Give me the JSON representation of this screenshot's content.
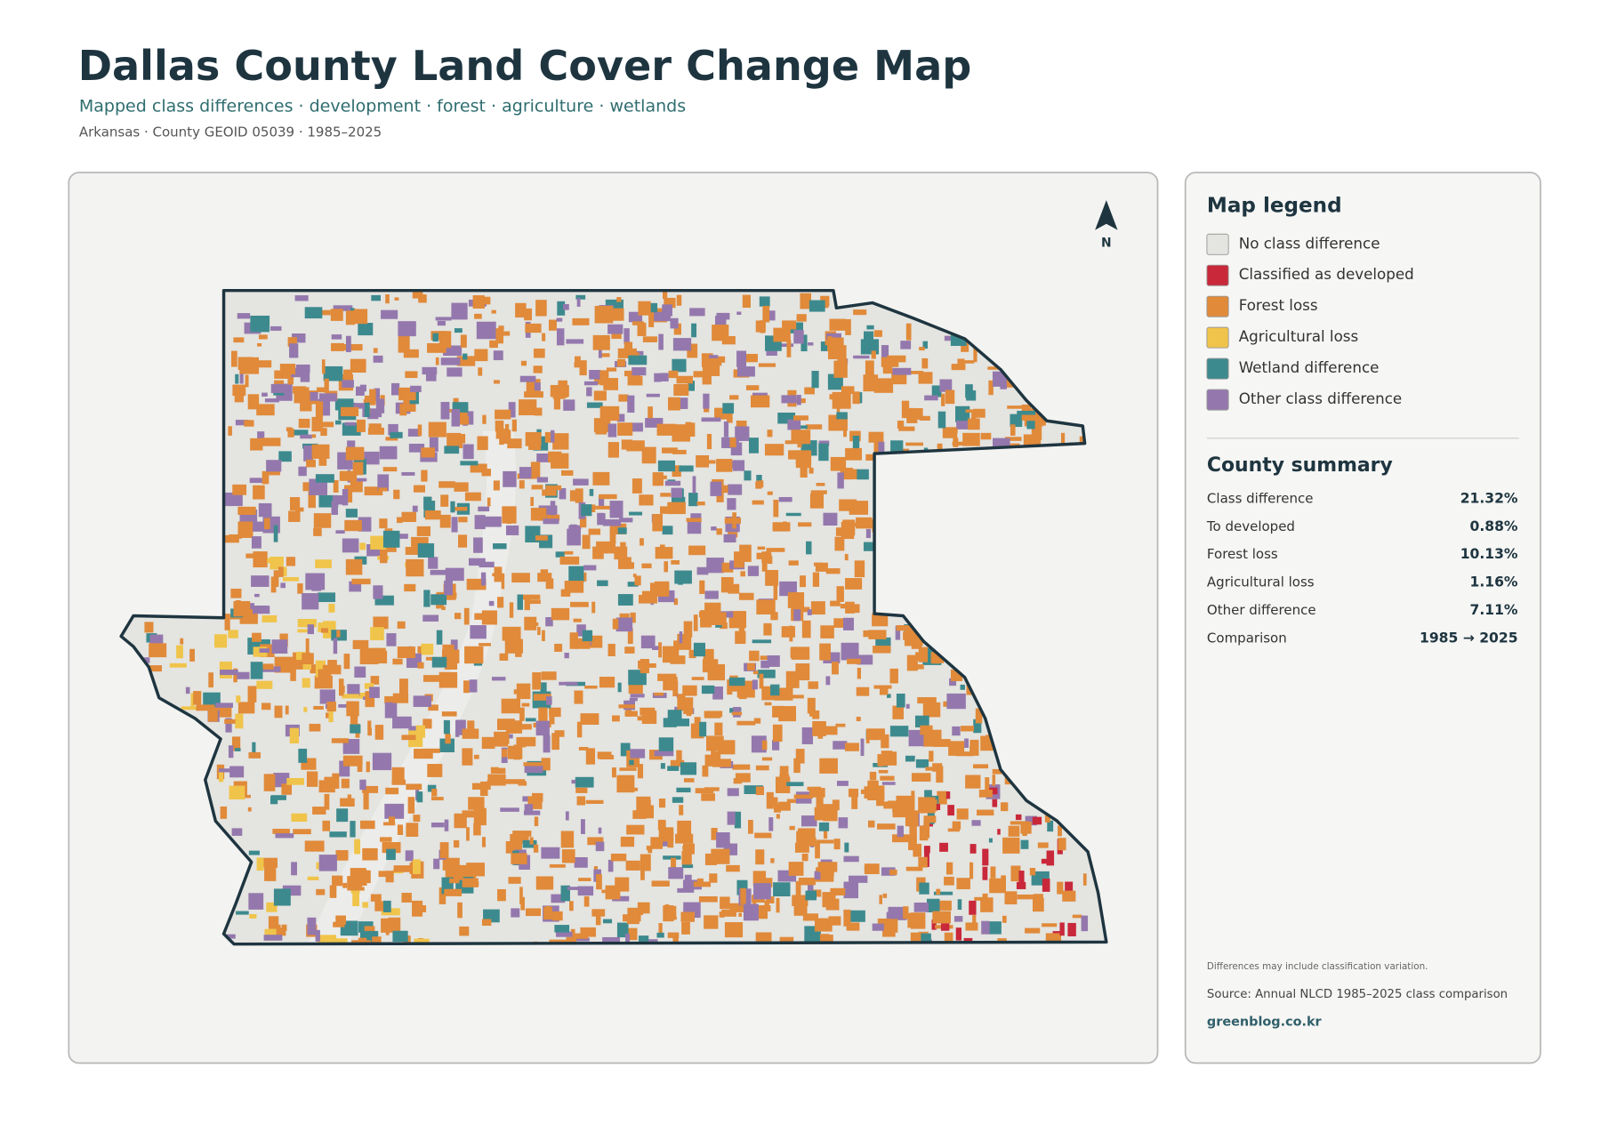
{
  "header": {
    "title": "Dallas County Land Cover Change Map",
    "subtitle": "Mapped class differences · development · forest · agriculture · wetlands",
    "meta": "Arkansas · County GEOID 05039 · 1985–2025"
  },
  "map": {
    "north_label": "N"
  },
  "legend": {
    "title": "Map legend",
    "items": [
      {
        "label": "No class difference",
        "color": "#e4e4e0"
      },
      {
        "label": "Classified as developed",
        "color": "#c8283a"
      },
      {
        "label": "Forest loss",
        "color": "#e08a3a"
      },
      {
        "label": "Agricultural loss",
        "color": "#f0c44a"
      },
      {
        "label": "Wetland difference",
        "color": "#3d8a8e"
      },
      {
        "label": "Other class difference",
        "color": "#9478ad"
      }
    ]
  },
  "summary": {
    "title": "County summary",
    "rows": [
      [
        "Class difference",
        "21.32%"
      ],
      [
        "To developed",
        "0.88%"
      ],
      [
        "Forest loss",
        "10.13%"
      ],
      [
        "Agricultural loss",
        "1.16%"
      ],
      [
        "Other difference",
        "7.11%"
      ],
      [
        "Comparison",
        "1985 → 2025"
      ]
    ]
  },
  "footer": {
    "note": "Differences may include classification variation.",
    "source": "Source: Annual NLCD 1985–2025 class comparison",
    "site": "greenblog.co.kr"
  }
}
